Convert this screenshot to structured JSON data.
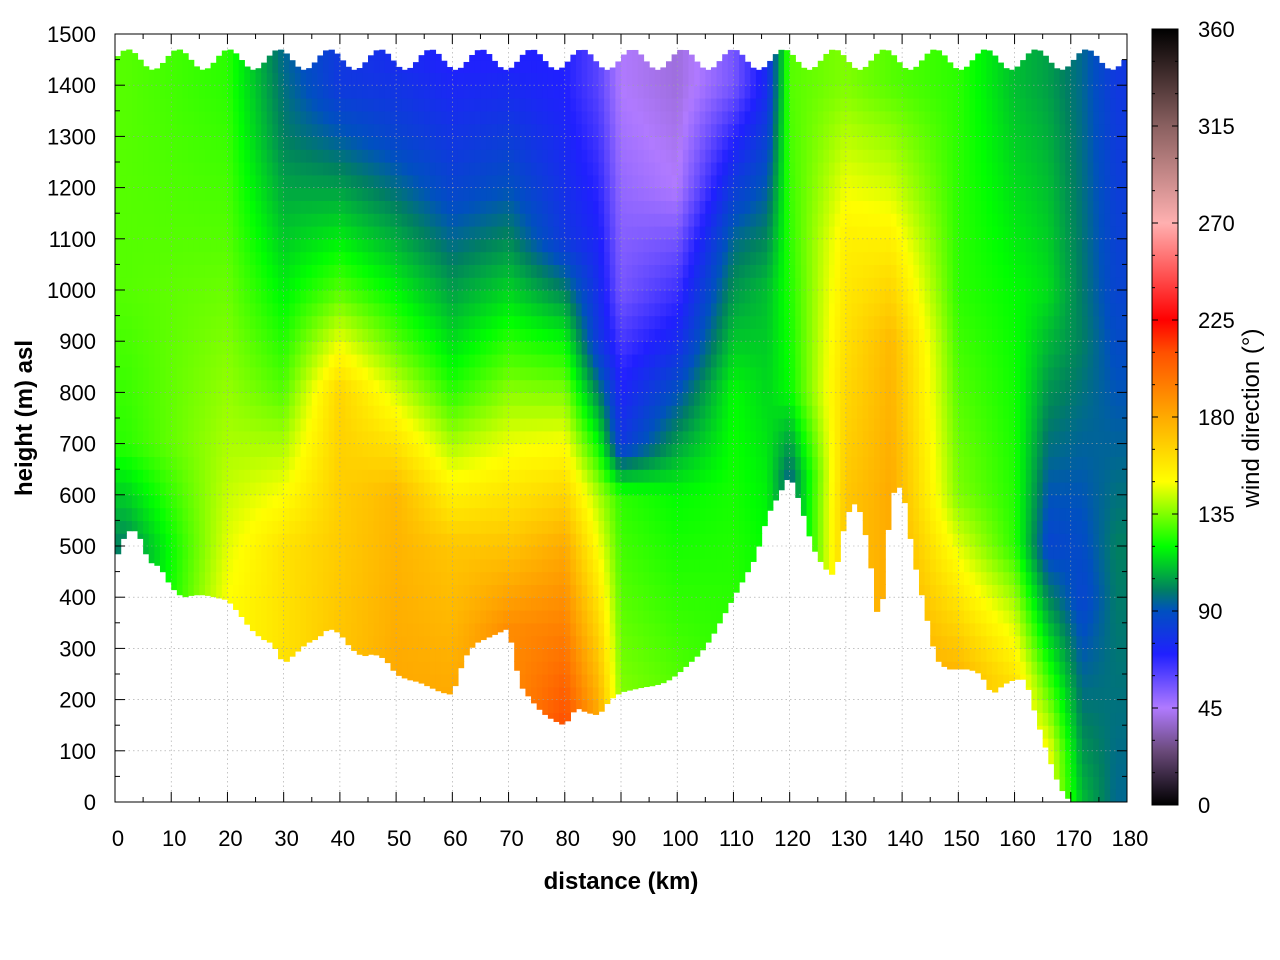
{
  "chart_data": {
    "type": "heatmap",
    "title": "",
    "xlabel": "distance (km)",
    "ylabel": "height (m) asl",
    "colorbar_label": "wind direction (°)",
    "xlim": [
      0,
      180
    ],
    "ylim": [
      0,
      1500
    ],
    "clim": [
      0,
      360
    ],
    "x_ticks": [
      "0",
      "10",
      "20",
      "30",
      "40",
      "50",
      "60",
      "70",
      "80",
      "90",
      "100",
      "110",
      "120",
      "130",
      "140",
      "150",
      "160",
      "170",
      "180"
    ],
    "y_ticks": [
      "0",
      "100",
      "200",
      "300",
      "400",
      "500",
      "600",
      "700",
      "800",
      "900",
      "1000",
      "1100",
      "1200",
      "1300",
      "1400",
      "1500"
    ],
    "colorbar_ticks": [
      "0",
      "45",
      "90",
      "135",
      "180",
      "225",
      "270",
      "315",
      "360"
    ],
    "grid": true,
    "colormap": [
      {
        "v": 0,
        "color": "#000000"
      },
      {
        "v": 25,
        "color": "#6a4a7a"
      },
      {
        "v": 45,
        "color": "#b07aff"
      },
      {
        "v": 70,
        "color": "#2020ff"
      },
      {
        "v": 90,
        "color": "#0050c0"
      },
      {
        "v": 100,
        "color": "#008060"
      },
      {
        "v": 120,
        "color": "#00ff00"
      },
      {
        "v": 150,
        "color": "#ffff00"
      },
      {
        "v": 180,
        "color": "#ffaa00"
      },
      {
        "v": 210,
        "color": "#ff5000"
      },
      {
        "v": 225,
        "color": "#ff0000"
      },
      {
        "v": 270,
        "color": "#ffb0b0"
      },
      {
        "v": 315,
        "color": "#8a6060"
      },
      {
        "v": 360,
        "color": "#000000"
      }
    ],
    "terrain_profile": {
      "distance_km": [
        0,
        2,
        4,
        6,
        8,
        10,
        12,
        14,
        16,
        18,
        20,
        22,
        24,
        26,
        28,
        30,
        32,
        34,
        36,
        38,
        40,
        42,
        44,
        46,
        48,
        50,
        52,
        54,
        56,
        58,
        60,
        62,
        64,
        66,
        68,
        70,
        72,
        74,
        76,
        78,
        80,
        82,
        84,
        86,
        88,
        90,
        92,
        94,
        96,
        98,
        100,
        102,
        104,
        106,
        108,
        110,
        112,
        114,
        116,
        118,
        120,
        122,
        124,
        126,
        128,
        130,
        132,
        134,
        136,
        138,
        140,
        142,
        144,
        146,
        148,
        150,
        152,
        154,
        156,
        158,
        160,
        162,
        164,
        166,
        168,
        170,
        172,
        174,
        176,
        178,
        180
      ],
      "height_m": [
        470,
        530,
        530,
        470,
        460,
        420,
        400,
        405,
        405,
        400,
        395,
        370,
        340,
        320,
        310,
        270,
        290,
        310,
        320,
        340,
        330,
        300,
        285,
        290,
        280,
        250,
        240,
        235,
        225,
        215,
        210,
        280,
        310,
        320,
        330,
        340,
        230,
        200,
        175,
        160,
        150,
        185,
        175,
        170,
        200,
        215,
        220,
        225,
        228,
        235,
        250,
        270,
        290,
        320,
        360,
        400,
        440,
        480,
        560,
        600,
        640,
        580,
        500,
        460,
        440,
        560,
        590,
        500,
        330,
        600,
        620,
        480,
        380,
        280,
        260,
        260,
        260,
        250,
        210,
        230,
        240,
        240,
        160,
        90,
        30,
        0,
        0,
        0,
        0,
        0,
        0
      ]
    },
    "samples": [
      {
        "x": 2,
        "levels": [
          [
            500,
            100
          ],
          [
            700,
            125
          ],
          [
            1000,
            130
          ],
          [
            1400,
            130
          ]
        ]
      },
      {
        "x": 20,
        "levels": [
          [
            400,
            150
          ],
          [
            700,
            140
          ],
          [
            1100,
            130
          ],
          [
            1400,
            125
          ]
        ]
      },
      {
        "x": 30,
        "levels": [
          [
            300,
            160
          ],
          [
            500,
            160
          ],
          [
            800,
            130
          ],
          [
            1300,
            100
          ],
          [
            1450,
            95
          ]
        ]
      },
      {
        "x": 40,
        "levels": [
          [
            350,
            170
          ],
          [
            800,
            165
          ],
          [
            1000,
            130
          ],
          [
            1400,
            80
          ]
        ]
      },
      {
        "x": 50,
        "levels": [
          [
            260,
            180
          ],
          [
            600,
            175
          ],
          [
            900,
            130
          ],
          [
            1300,
            85
          ],
          [
            1450,
            75
          ]
        ]
      },
      {
        "x": 60,
        "levels": [
          [
            220,
            180
          ],
          [
            500,
            170
          ],
          [
            800,
            125
          ],
          [
            1200,
            85
          ],
          [
            1450,
            70
          ]
        ]
      },
      {
        "x": 70,
        "levels": [
          [
            340,
            190
          ],
          [
            550,
            165
          ],
          [
            900,
            125
          ],
          [
            1200,
            90
          ],
          [
            1450,
            70
          ]
        ]
      },
      {
        "x": 80,
        "levels": [
          [
            160,
            210
          ],
          [
            500,
            180
          ],
          [
            900,
            120
          ],
          [
            1100,
            80
          ],
          [
            1400,
            70
          ]
        ]
      },
      {
        "x": 86,
        "levels": [
          [
            180,
            180
          ],
          [
            600,
            140
          ],
          [
            900,
            80
          ],
          [
            1400,
            60
          ]
        ]
      },
      {
        "x": 90,
        "levels": [
          [
            220,
            135
          ],
          [
            600,
            125
          ],
          [
            700,
            80
          ],
          [
            1000,
            55
          ],
          [
            1400,
            45
          ]
        ]
      },
      {
        "x": 100,
        "levels": [
          [
            230,
            130
          ],
          [
            600,
            120
          ],
          [
            900,
            75
          ],
          [
            1200,
            45
          ],
          [
            1400,
            40
          ]
        ]
      },
      {
        "x": 110,
        "levels": [
          [
            400,
            125
          ],
          [
            800,
            120
          ],
          [
            1100,
            95
          ],
          [
            1400,
            55
          ]
        ]
      },
      {
        "x": 116,
        "levels": [
          [
            500,
            120
          ],
          [
            1000,
            110
          ],
          [
            1400,
            75
          ]
        ]
      },
      {
        "x": 120,
        "levels": [
          [
            640,
            95
          ],
          [
            800,
            120
          ],
          [
            1400,
            130
          ]
        ]
      },
      {
        "x": 130,
        "levels": [
          [
            580,
            170
          ],
          [
            1100,
            155
          ],
          [
            1400,
            135
          ]
        ]
      },
      {
        "x": 138,
        "levels": [
          [
            600,
            180
          ],
          [
            900,
            175
          ],
          [
            1200,
            145
          ],
          [
            1400,
            130
          ]
        ]
      },
      {
        "x": 150,
        "levels": [
          [
            260,
            175
          ],
          [
            600,
            135
          ],
          [
            1000,
            125
          ],
          [
            1400,
            125
          ]
        ]
      },
      {
        "x": 160,
        "levels": [
          [
            240,
            160
          ],
          [
            500,
            125
          ],
          [
            1000,
            120
          ],
          [
            1400,
            110
          ]
        ]
      },
      {
        "x": 166,
        "levels": [
          [
            100,
            150
          ],
          [
            500,
            85
          ],
          [
            1000,
            115
          ],
          [
            1400,
            105
          ]
        ]
      },
      {
        "x": 172,
        "levels": [
          [
            0,
            110
          ],
          [
            400,
            85
          ],
          [
            900,
            100
          ],
          [
            1400,
            95
          ]
        ]
      },
      {
        "x": 178,
        "levels": [
          [
            0,
            95
          ],
          [
            500,
            100
          ],
          [
            1000,
            85
          ],
          [
            1400,
            80
          ]
        ]
      }
    ]
  }
}
